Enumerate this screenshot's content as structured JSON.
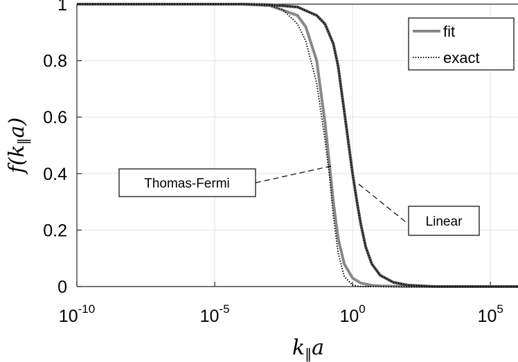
{
  "chart_data": {
    "type": "line",
    "xscale": "log",
    "xlim": [
      1e-10,
      1000000.0
    ],
    "ylim": [
      0,
      1
    ],
    "grid": true,
    "xlabel": "k‖a",
    "ylabel": "f(k‖a)",
    "x_tick_values": [
      1e-10,
      1e-05,
      1,
      100000.0
    ],
    "x_tick_labels": [
      {
        "base": "10",
        "exp": "-10"
      },
      {
        "base": "10",
        "exp": "-5"
      },
      {
        "base": "10",
        "exp": "0"
      },
      {
        "base": "10",
        "exp": "5"
      }
    ],
    "y_ticks": [
      0,
      0.2,
      0.4,
      0.6,
      0.8,
      1
    ],
    "y_tick_labels": [
      "0",
      "0.2",
      "0.4",
      "0.6",
      "0.8",
      "1"
    ],
    "legend": {
      "position": "top-right",
      "entries": [
        "fit",
        "exact"
      ]
    },
    "series": [
      {
        "name": "fit",
        "group": "Thomas-Fermi",
        "style": "solid",
        "color": "#888888",
        "x": [
          1e-10,
          0.0001,
          0.001,
          0.01,
          0.02,
          0.05,
          0.1,
          0.15,
          0.2,
          0.3,
          0.5,
          1,
          2,
          5,
          10,
          100,
          1000000.0
        ],
        "y": [
          1,
          1,
          0.995,
          0.96,
          0.92,
          0.8,
          0.58,
          0.42,
          0.3,
          0.17,
          0.08,
          0.03,
          0.012,
          0.004,
          0.002,
          0,
          0
        ]
      },
      {
        "name": "exact",
        "group": "Thomas-Fermi",
        "style": "dotted",
        "color": "#000000",
        "x": [
          1e-10,
          0.0001,
          0.001,
          0.003,
          0.01,
          0.02,
          0.05,
          0.1,
          0.15,
          0.2,
          0.3,
          0.5,
          1,
          2,
          1000000.0
        ],
        "y": [
          1,
          1,
          0.995,
          0.98,
          0.93,
          0.87,
          0.72,
          0.52,
          0.38,
          0.25,
          0.12,
          0.035,
          0.005,
          0,
          0
        ]
      },
      {
        "name": "fit",
        "group": "Linear",
        "style": "solid",
        "color": "#555555",
        "x": [
          1e-10,
          0.0001,
          0.001,
          0.01,
          0.05,
          0.1,
          0.2,
          0.3,
          0.5,
          1,
          1.5,
          2,
          3,
          5,
          10,
          30,
          100,
          1000,
          1000000.0
        ],
        "y": [
          1,
          1,
          0.998,
          0.99,
          0.96,
          0.93,
          0.86,
          0.78,
          0.62,
          0.4,
          0.29,
          0.22,
          0.14,
          0.08,
          0.04,
          0.015,
          0.005,
          0,
          0
        ]
      },
      {
        "name": "exact",
        "group": "Linear",
        "style": "dotted",
        "color": "#000000",
        "x": [
          1e-10,
          0.0001,
          0.001,
          0.01,
          0.05,
          0.1,
          0.2,
          0.3,
          0.5,
          1,
          1.5,
          2,
          3,
          5,
          10,
          30,
          100,
          1000,
          1000000.0
        ],
        "y": [
          1,
          1,
          0.998,
          0.99,
          0.96,
          0.93,
          0.86,
          0.78,
          0.62,
          0.4,
          0.29,
          0.22,
          0.14,
          0.08,
          0.04,
          0.015,
          0.005,
          0,
          0
        ]
      }
    ],
    "annotations": [
      {
        "text": "Thomas-Fermi",
        "points_to_x": 0.12,
        "points_to_y": 0.42
      },
      {
        "text": "Linear",
        "points_to_x": 0.9,
        "points_to_y": 0.36
      }
    ]
  }
}
